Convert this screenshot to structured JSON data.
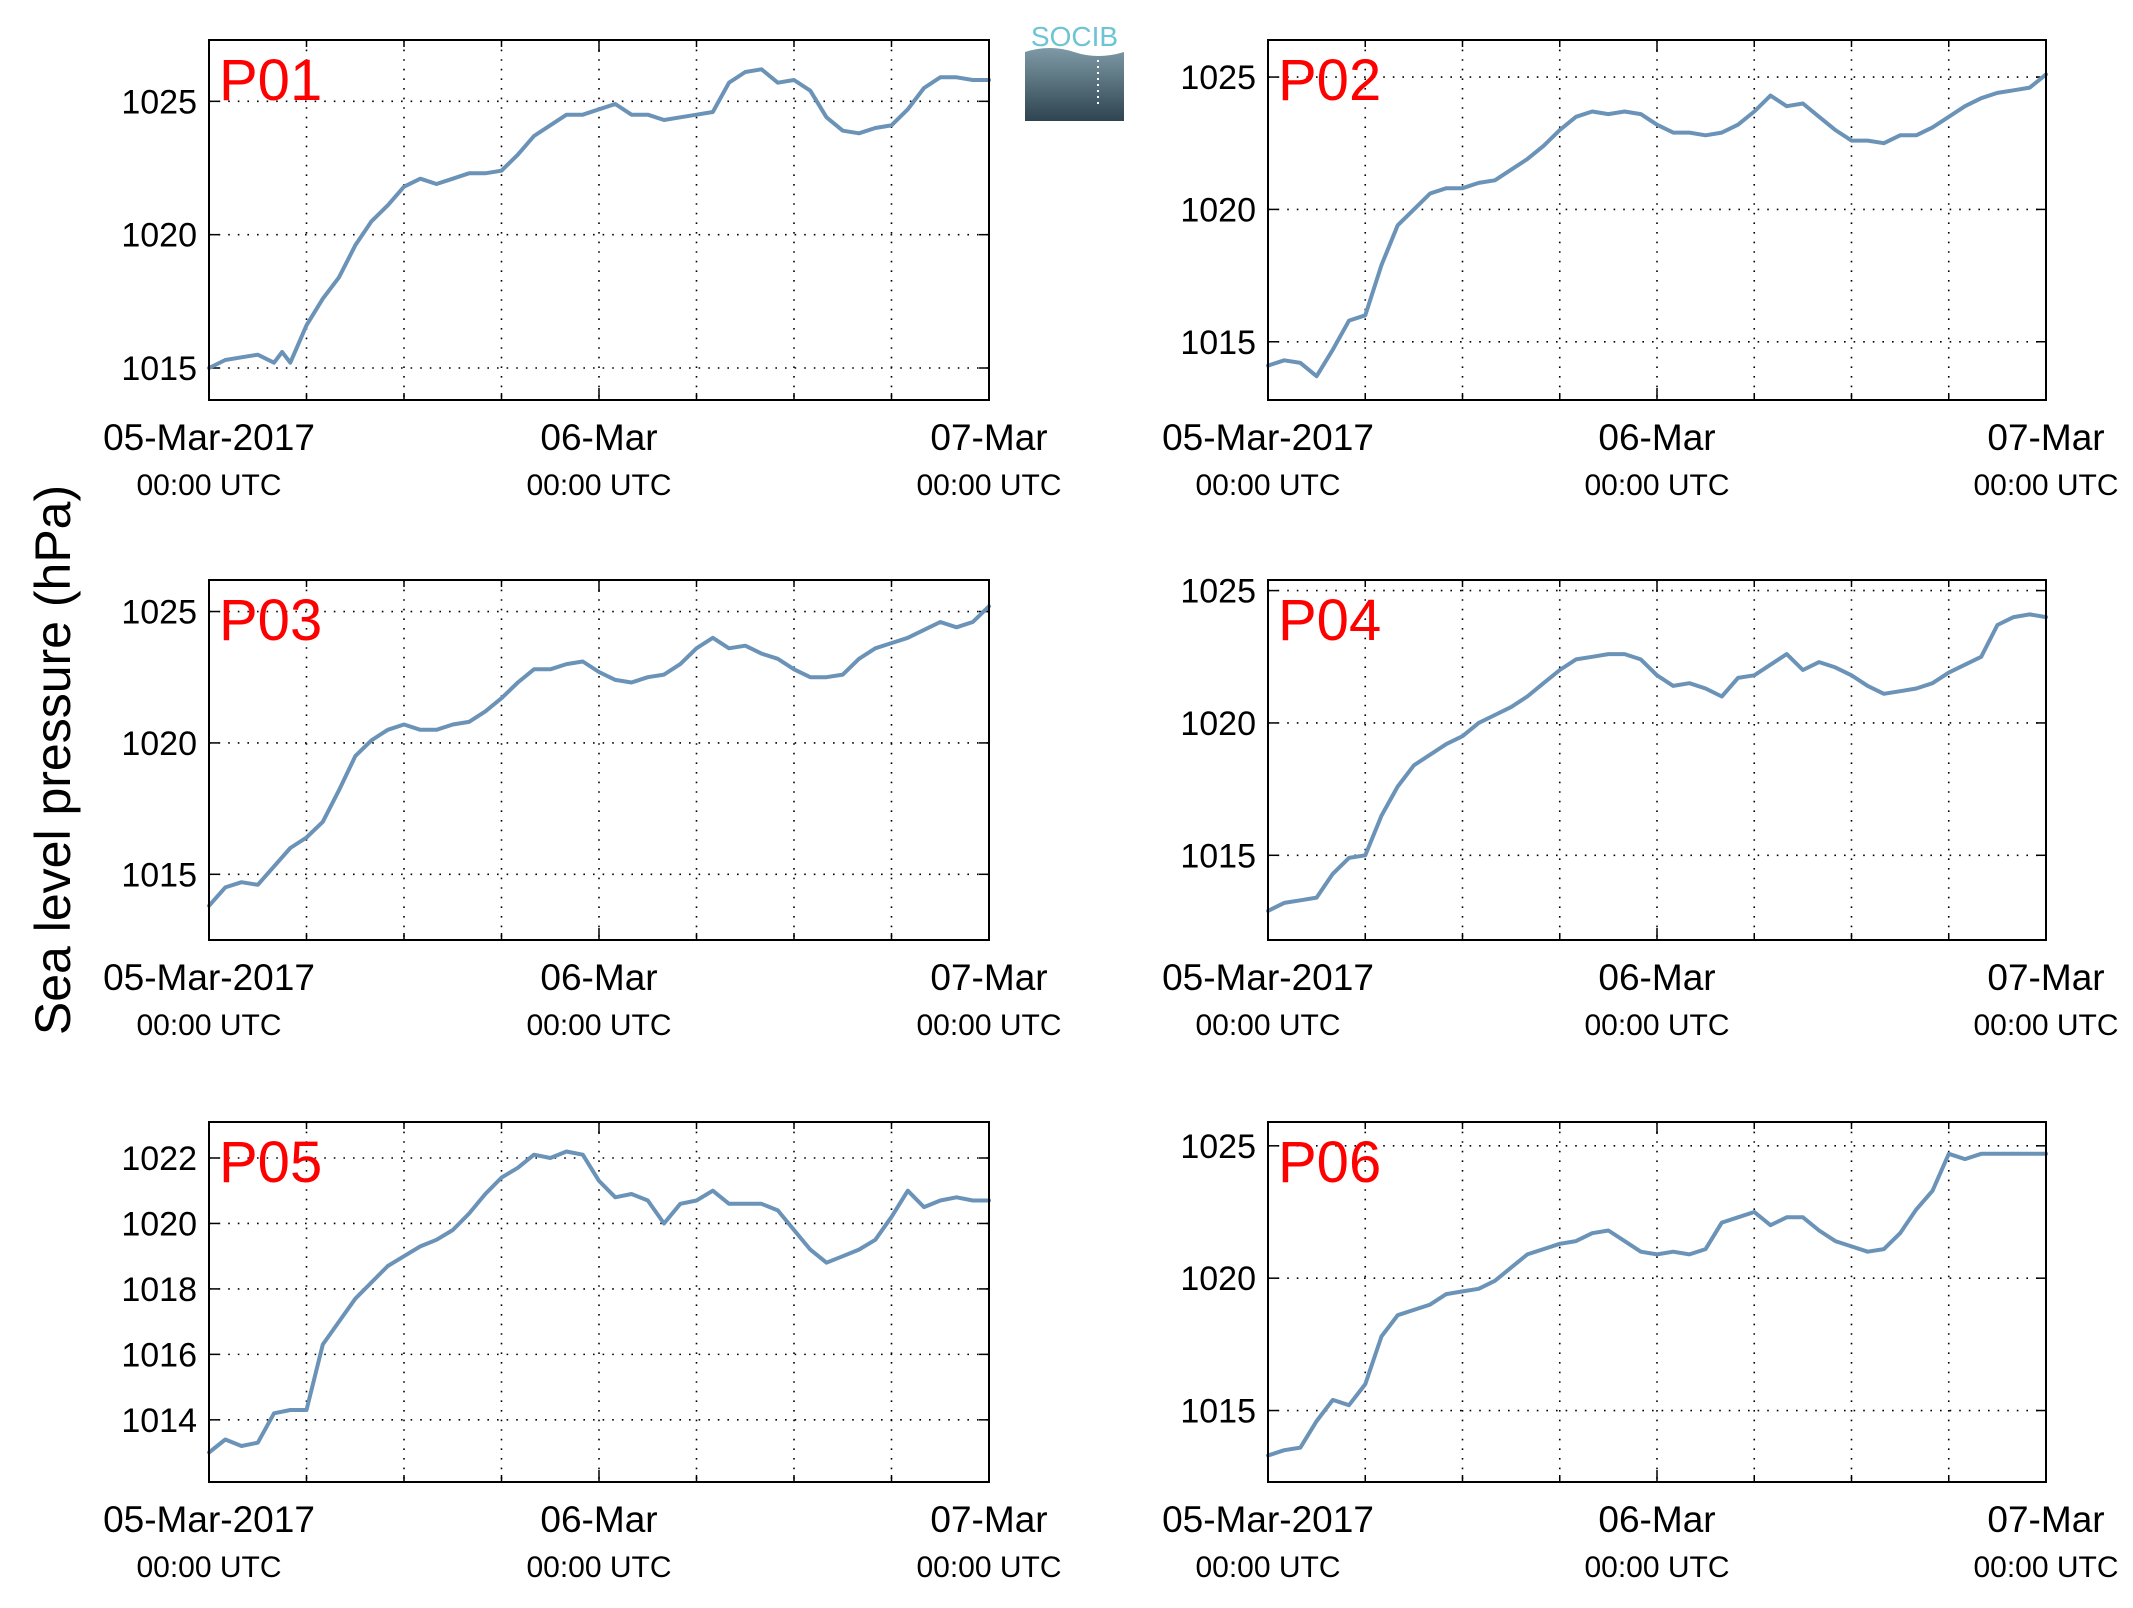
{
  "figure": {
    "ylabel": "Sea level pressure (hPa)",
    "logo_text": "SOCIB",
    "colors": {
      "line": "#6b93b8",
      "panel_label": "#ff0000",
      "axis": "#000000",
      "grid": "#000000"
    }
  },
  "chart_data": [
    {
      "type": "line",
      "label": "P01",
      "xlim": [
        "2017-03-05T00:00Z",
        "2017-03-07T00:00Z"
      ],
      "ylim": [
        1013.8,
        1027.3
      ],
      "yticks": [
        1015,
        1020,
        1025
      ],
      "xticks": [
        {
          "date": "05-Mar-2017",
          "time": "00:00 UTC"
        },
        {
          "date": "06-Mar",
          "time": "00:00 UTC"
        },
        {
          "date": "07-Mar",
          "time": "00:00 UTC"
        }
      ],
      "grid": true,
      "series": [
        {
          "x_hours": [
            0,
            2,
            4,
            6,
            8,
            9,
            10,
            12,
            14,
            16,
            18,
            20,
            22,
            24,
            26,
            28,
            30,
            32,
            34,
            36,
            38,
            40,
            42,
            44,
            46,
            48,
            50,
            52,
            54,
            56,
            58,
            60,
            62,
            64,
            66,
            68,
            70,
            72,
            74,
            76,
            78,
            80,
            82,
            84,
            86,
            88,
            90,
            92,
            94,
            96
          ],
          "y": [
            1015.0,
            1015.3,
            1015.4,
            1015.5,
            1015.2,
            1015.6,
            1015.2,
            1016.6,
            1017.6,
            1018.4,
            1019.6,
            1020.5,
            1021.1,
            1021.8,
            1022.1,
            1021.9,
            1022.1,
            1022.3,
            1022.3,
            1022.4,
            1023.0,
            1023.7,
            1024.1,
            1024.5,
            1024.5,
            1024.7,
            1024.9,
            1024.5,
            1024.5,
            1024.3,
            1024.4,
            1024.5,
            1024.6,
            1025.7,
            1026.1,
            1026.2,
            1025.7,
            1025.8,
            1025.4,
            1024.4,
            1023.9,
            1023.8,
            1024.0,
            1024.1,
            1024.7,
            1025.5,
            1025.9,
            1025.9,
            1025.8,
            1025.8
          ]
        }
      ]
    },
    {
      "type": "line",
      "label": "P02",
      "xlim": [
        "2017-03-05T00:00Z",
        "2017-03-07T00:00Z"
      ],
      "ylim": [
        1012.8,
        1026.4
      ],
      "yticks": [
        1015,
        1020,
        1025
      ],
      "xticks": [
        {
          "date": "05-Mar-2017",
          "time": "00:00 UTC"
        },
        {
          "date": "06-Mar",
          "time": "00:00 UTC"
        },
        {
          "date": "07-Mar",
          "time": "00:00 UTC"
        }
      ],
      "grid": true,
      "series": [
        {
          "x_hours": [
            0,
            2,
            4,
            6,
            8,
            10,
            12,
            14,
            16,
            18,
            20,
            22,
            24,
            26,
            28,
            30,
            32,
            34,
            36,
            38,
            40,
            42,
            44,
            46,
            48,
            50,
            52,
            54,
            56,
            58,
            60,
            62,
            64,
            66,
            68,
            70,
            72,
            74,
            76,
            78,
            80,
            82,
            84,
            86,
            88,
            90,
            92,
            94,
            96
          ],
          "y": [
            1014.1,
            1014.3,
            1014.2,
            1013.7,
            1014.7,
            1015.8,
            1016.0,
            1017.9,
            1019.4,
            1020.0,
            1020.6,
            1020.8,
            1020.8,
            1021.0,
            1021.1,
            1021.5,
            1021.9,
            1022.4,
            1023.0,
            1023.5,
            1023.7,
            1023.6,
            1023.7,
            1023.6,
            1023.2,
            1022.9,
            1022.9,
            1022.8,
            1022.9,
            1023.2,
            1023.7,
            1024.3,
            1023.9,
            1024.0,
            1023.5,
            1023.0,
            1022.6,
            1022.6,
            1022.5,
            1022.8,
            1022.8,
            1023.1,
            1023.5,
            1023.9,
            1024.2,
            1024.4,
            1024.5,
            1024.6,
            1025.1
          ]
        }
      ]
    },
    {
      "type": "line",
      "label": "P03",
      "xlim": [
        "2017-03-05T00:00Z",
        "2017-03-07T00:00Z"
      ],
      "ylim": [
        1012.5,
        1026.2
      ],
      "yticks": [
        1015,
        1020,
        1025
      ],
      "xticks": [
        {
          "date": "05-Mar-2017",
          "time": "00:00 UTC"
        },
        {
          "date": "06-Mar",
          "time": "00:00 UTC"
        },
        {
          "date": "07-Mar",
          "time": "00:00 UTC"
        }
      ],
      "grid": true,
      "series": [
        {
          "x_hours": [
            0,
            2,
            4,
            6,
            8,
            10,
            12,
            14,
            16,
            18,
            20,
            22,
            24,
            26,
            28,
            30,
            32,
            34,
            36,
            38,
            40,
            42,
            44,
            46,
            48,
            50,
            52,
            54,
            56,
            58,
            60,
            62,
            64,
            66,
            68,
            70,
            72,
            74,
            76,
            78,
            80,
            82,
            84,
            86,
            88,
            90,
            92,
            94,
            96
          ],
          "y": [
            1013.8,
            1014.5,
            1014.7,
            1014.6,
            1015.3,
            1016.0,
            1016.4,
            1017.0,
            1018.2,
            1019.5,
            1020.1,
            1020.5,
            1020.7,
            1020.5,
            1020.5,
            1020.7,
            1020.8,
            1021.2,
            1021.7,
            1022.3,
            1022.8,
            1022.8,
            1023.0,
            1023.1,
            1022.7,
            1022.4,
            1022.3,
            1022.5,
            1022.6,
            1023.0,
            1023.6,
            1024.0,
            1023.6,
            1023.7,
            1023.4,
            1023.2,
            1022.8,
            1022.5,
            1022.5,
            1022.6,
            1023.2,
            1023.6,
            1023.8,
            1024.0,
            1024.3,
            1024.6,
            1024.4,
            1024.6,
            1025.2
          ]
        }
      ]
    },
    {
      "type": "line",
      "label": "P04",
      "xlim": [
        "2017-03-05T00:00Z",
        "2017-03-07T00:00Z"
      ],
      "ylim": [
        1011.8,
        1025.4
      ],
      "yticks": [
        1015,
        1020,
        1025
      ],
      "xticks": [
        {
          "date": "05-Mar-2017",
          "time": "00:00 UTC"
        },
        {
          "date": "06-Mar",
          "time": "00:00 UTC"
        },
        {
          "date": "07-Mar",
          "time": "00:00 UTC"
        }
      ],
      "grid": true,
      "series": [
        {
          "x_hours": [
            0,
            2,
            4,
            6,
            8,
            10,
            12,
            14,
            16,
            18,
            20,
            22,
            24,
            26,
            28,
            30,
            32,
            34,
            36,
            38,
            40,
            42,
            44,
            46,
            48,
            50,
            52,
            54,
            56,
            58,
            60,
            62,
            64,
            66,
            68,
            70,
            72,
            74,
            76,
            78,
            80,
            82,
            84,
            86,
            88,
            90,
            92,
            94,
            96
          ],
          "y": [
            1012.9,
            1013.2,
            1013.3,
            1013.4,
            1014.3,
            1014.9,
            1015.0,
            1016.5,
            1017.6,
            1018.4,
            1018.8,
            1019.2,
            1019.5,
            1020.0,
            1020.3,
            1020.6,
            1021.0,
            1021.5,
            1022.0,
            1022.4,
            1022.5,
            1022.6,
            1022.6,
            1022.4,
            1021.8,
            1021.4,
            1021.5,
            1021.3,
            1021.0,
            1021.7,
            1021.8,
            1022.2,
            1022.6,
            1022.0,
            1022.3,
            1022.1,
            1021.8,
            1021.4,
            1021.1,
            1021.2,
            1021.3,
            1021.5,
            1021.9,
            1022.2,
            1022.5,
            1023.7,
            1024.0,
            1024.1,
            1024.0
          ]
        }
      ]
    },
    {
      "type": "line",
      "label": "P05",
      "xlim": [
        "2017-03-05T00:00Z",
        "2017-03-07T00:00Z"
      ],
      "ylim": [
        1012.1,
        1023.1
      ],
      "yticks": [
        1014,
        1016,
        1018,
        1020,
        1022
      ],
      "xticks": [
        {
          "date": "05-Mar-2017",
          "time": "00:00 UTC"
        },
        {
          "date": "06-Mar",
          "time": "00:00 UTC"
        },
        {
          "date": "07-Mar",
          "time": "00:00 UTC"
        }
      ],
      "grid": true,
      "series": [
        {
          "x_hours": [
            0,
            2,
            4,
            6,
            8,
            10,
            12,
            14,
            16,
            18,
            20,
            22,
            24,
            26,
            28,
            30,
            32,
            34,
            36,
            38,
            40,
            42,
            44,
            46,
            48,
            50,
            52,
            54,
            56,
            58,
            60,
            62,
            64,
            66,
            68,
            70,
            72,
            74,
            76,
            78,
            80,
            82,
            84,
            86,
            88,
            90,
            92,
            94,
            96
          ],
          "y": [
            1013.0,
            1013.4,
            1013.2,
            1013.3,
            1014.2,
            1014.3,
            1014.3,
            1016.3,
            1017.0,
            1017.7,
            1018.2,
            1018.7,
            1019.0,
            1019.3,
            1019.5,
            1019.8,
            1020.3,
            1020.9,
            1021.4,
            1021.7,
            1022.1,
            1022.0,
            1022.2,
            1022.1,
            1021.3,
            1020.8,
            1020.9,
            1020.7,
            1020.0,
            1020.6,
            1020.7,
            1021.0,
            1020.6,
            1020.6,
            1020.6,
            1020.4,
            1019.8,
            1019.2,
            1018.8,
            1019.0,
            1019.2,
            1019.5,
            1020.2,
            1021.0,
            1020.5,
            1020.7,
            1020.8,
            1020.7,
            1020.7
          ]
        }
      ]
    },
    {
      "type": "line",
      "label": "P06",
      "xlim": [
        "2017-03-05T00:00Z",
        "2017-03-07T00:00Z"
      ],
      "ylim": [
        1012.3,
        1025.9
      ],
      "yticks": [
        1015,
        1020,
        1025
      ],
      "xticks": [
        {
          "date": "05-Mar-2017",
          "time": "00:00 UTC"
        },
        {
          "date": "06-Mar",
          "time": "00:00 UTC"
        },
        {
          "date": "07-Mar",
          "time": "00:00 UTC"
        }
      ],
      "grid": true,
      "series": [
        {
          "x_hours": [
            0,
            2,
            4,
            6,
            8,
            10,
            12,
            14,
            16,
            18,
            20,
            22,
            24,
            26,
            28,
            30,
            32,
            34,
            36,
            38,
            40,
            42,
            44,
            46,
            48,
            50,
            52,
            54,
            56,
            58,
            60,
            62,
            64,
            66,
            68,
            70,
            72,
            74,
            76,
            78,
            80,
            82,
            84,
            86,
            88,
            90,
            92,
            94,
            96
          ],
          "y": [
            1013.3,
            1013.5,
            1013.6,
            1014.6,
            1015.4,
            1015.2,
            1016.0,
            1017.8,
            1018.6,
            1018.8,
            1019.0,
            1019.4,
            1019.5,
            1019.6,
            1019.9,
            1020.4,
            1020.9,
            1021.1,
            1021.3,
            1021.4,
            1021.7,
            1021.8,
            1021.4,
            1021.0,
            1020.9,
            1021.0,
            1020.9,
            1021.1,
            1022.1,
            1022.3,
            1022.5,
            1022.0,
            1022.3,
            1022.3,
            1021.8,
            1021.4,
            1021.2,
            1021.0,
            1021.1,
            1021.7,
            1022.6,
            1023.3,
            1024.7,
            1024.5,
            1024.7,
            1024.7,
            1024.7,
            1024.7,
            1024.7
          ]
        }
      ]
    }
  ]
}
